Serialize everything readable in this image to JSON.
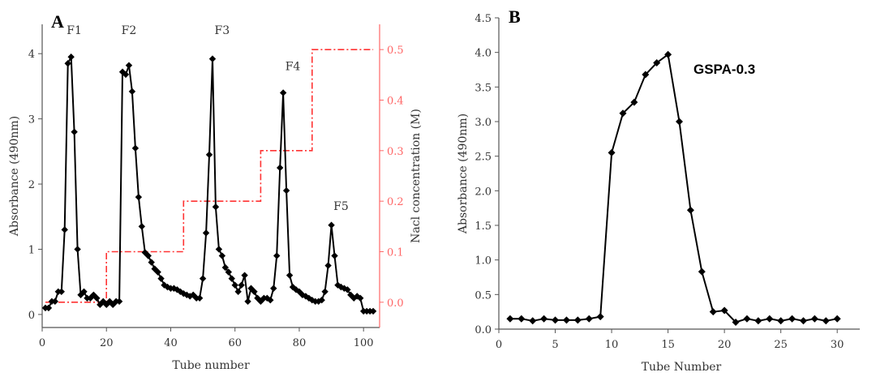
{
  "chart_data": [
    {
      "panel": "A",
      "type": "line",
      "xlabel": "Tube number",
      "ylabel": "Absorbance (490nm)",
      "y2label": "Nacl concentration (M)",
      "xlim": [
        0,
        105
      ],
      "ylim": [
        -0.2,
        4.45
      ],
      "y2lim": [
        -0.05,
        0.55
      ],
      "xticks": [
        "0",
        "20",
        "40",
        "60",
        "80",
        "100"
      ],
      "yticks": [
        "0",
        "1",
        "2",
        "3",
        "4"
      ],
      "y2ticks": [
        "0.0",
        "0.1",
        "0.2",
        "0.3",
        "0.4",
        "0.5"
      ],
      "colors": {
        "absorbance": "#000000",
        "nacl": "#ff3333",
        "y2axis": "#ff6666"
      },
      "peak_labels": [
        {
          "text": "F1",
          "x": 10,
          "y": 4.3
        },
        {
          "text": "F2",
          "x": 27,
          "y": 4.3
        },
        {
          "text": "F3",
          "x": 56,
          "y": 4.3
        },
        {
          "text": "F4",
          "x": 78,
          "y": 3.75
        },
        {
          "text": "F5",
          "x": 93,
          "y": 1.6
        }
      ],
      "series": [
        {
          "kind": "absorbance",
          "x": [
            1,
            2,
            3,
            4,
            5,
            6,
            7,
            8,
            9,
            10,
            11,
            12,
            13,
            14,
            15,
            16,
            17,
            18,
            19,
            20,
            21,
            22,
            23,
            24,
            25,
            26,
            27,
            28,
            29,
            30,
            31,
            32,
            33,
            34,
            35,
            36,
            37,
            38,
            39,
            40,
            41,
            42,
            43,
            44,
            45,
            46,
            47,
            48,
            49,
            50,
            51,
            52,
            53,
            54,
            55,
            56,
            57,
            58,
            59,
            60,
            61,
            62,
            63,
            64,
            65,
            66,
            67,
            68,
            69,
            70,
            71,
            72,
            73,
            74,
            75,
            76,
            77,
            78,
            79,
            80,
            81,
            82,
            83,
            84,
            85,
            86,
            87,
            88,
            89,
            90,
            91,
            92,
            93,
            94,
            95,
            96,
            97,
            98,
            99,
            100,
            101,
            102,
            103
          ],
          "y": [
            0.1,
            0.1,
            0.2,
            0.2,
            0.35,
            0.35,
            1.3,
            3.85,
            3.95,
            2.8,
            1.0,
            0.3,
            0.35,
            0.25,
            0.25,
            0.3,
            0.25,
            0.15,
            0.2,
            0.15,
            0.2,
            0.15,
            0.2,
            0.2,
            3.72,
            3.68,
            3.82,
            3.42,
            2.55,
            1.8,
            1.35,
            0.95,
            0.9,
            0.8,
            0.7,
            0.65,
            0.55,
            0.45,
            0.42,
            0.4,
            0.4,
            0.38,
            0.35,
            0.32,
            0.3,
            0.28,
            0.3,
            0.25,
            0.25,
            0.55,
            1.25,
            2.45,
            3.92,
            1.65,
            1.0,
            0.9,
            0.72,
            0.65,
            0.55,
            0.45,
            0.35,
            0.45,
            0.6,
            0.2,
            0.4,
            0.35,
            0.25,
            0.2,
            0.25,
            0.25,
            0.22,
            0.4,
            0.9,
            2.25,
            3.4,
            1.9,
            0.6,
            0.42,
            0.38,
            0.35,
            0.3,
            0.28,
            0.25,
            0.22,
            0.2,
            0.2,
            0.22,
            0.35,
            0.75,
            1.37,
            0.9,
            0.45,
            0.42,
            0.4,
            0.38,
            0.3,
            0.25,
            0.28,
            0.25,
            0.05,
            0.05,
            0.05,
            0.05
          ]
        },
        {
          "kind": "nacl",
          "x": [
            1,
            20,
            20,
            44,
            44,
            68,
            68,
            84,
            84,
            103
          ],
          "y": [
            0,
            0,
            0.1,
            0.1,
            0.2,
            0.2,
            0.3,
            0.3,
            0.5,
            0.5
          ]
        }
      ]
    },
    {
      "panel": "B",
      "type": "line",
      "annotation": "GSPA-0.3",
      "xlabel": "Tube Number",
      "ylabel": "Absorbance (490nm)",
      "xlim": [
        0,
        32
      ],
      "ylim": [
        0,
        4.5
      ],
      "xticks": [
        "0",
        "5",
        "10",
        "15",
        "20",
        "25",
        "30"
      ],
      "yticks": [
        "0.0",
        "0.5",
        "1.0",
        "1.5",
        "2.0",
        "2.5",
        "3.0",
        "3.5",
        "4.0",
        "4.5"
      ],
      "colors": {
        "line": "#000000"
      },
      "series": [
        {
          "x": [
            1,
            2,
            3,
            4,
            5,
            6,
            7,
            8,
            9,
            10,
            11,
            12,
            13,
            14,
            15,
            16,
            17,
            18,
            19,
            20,
            21,
            22,
            23,
            24,
            25,
            26,
            27,
            28,
            29,
            30
          ],
          "y": [
            0.15,
            0.15,
            0.12,
            0.15,
            0.13,
            0.13,
            0.13,
            0.15,
            0.18,
            2.55,
            3.12,
            3.28,
            3.68,
            3.85,
            3.97,
            3.0,
            1.72,
            0.83,
            0.25,
            0.27,
            0.1,
            0.15,
            0.12,
            0.15,
            0.12,
            0.15,
            0.12,
            0.15,
            0.12,
            0.15
          ]
        }
      ]
    }
  ]
}
